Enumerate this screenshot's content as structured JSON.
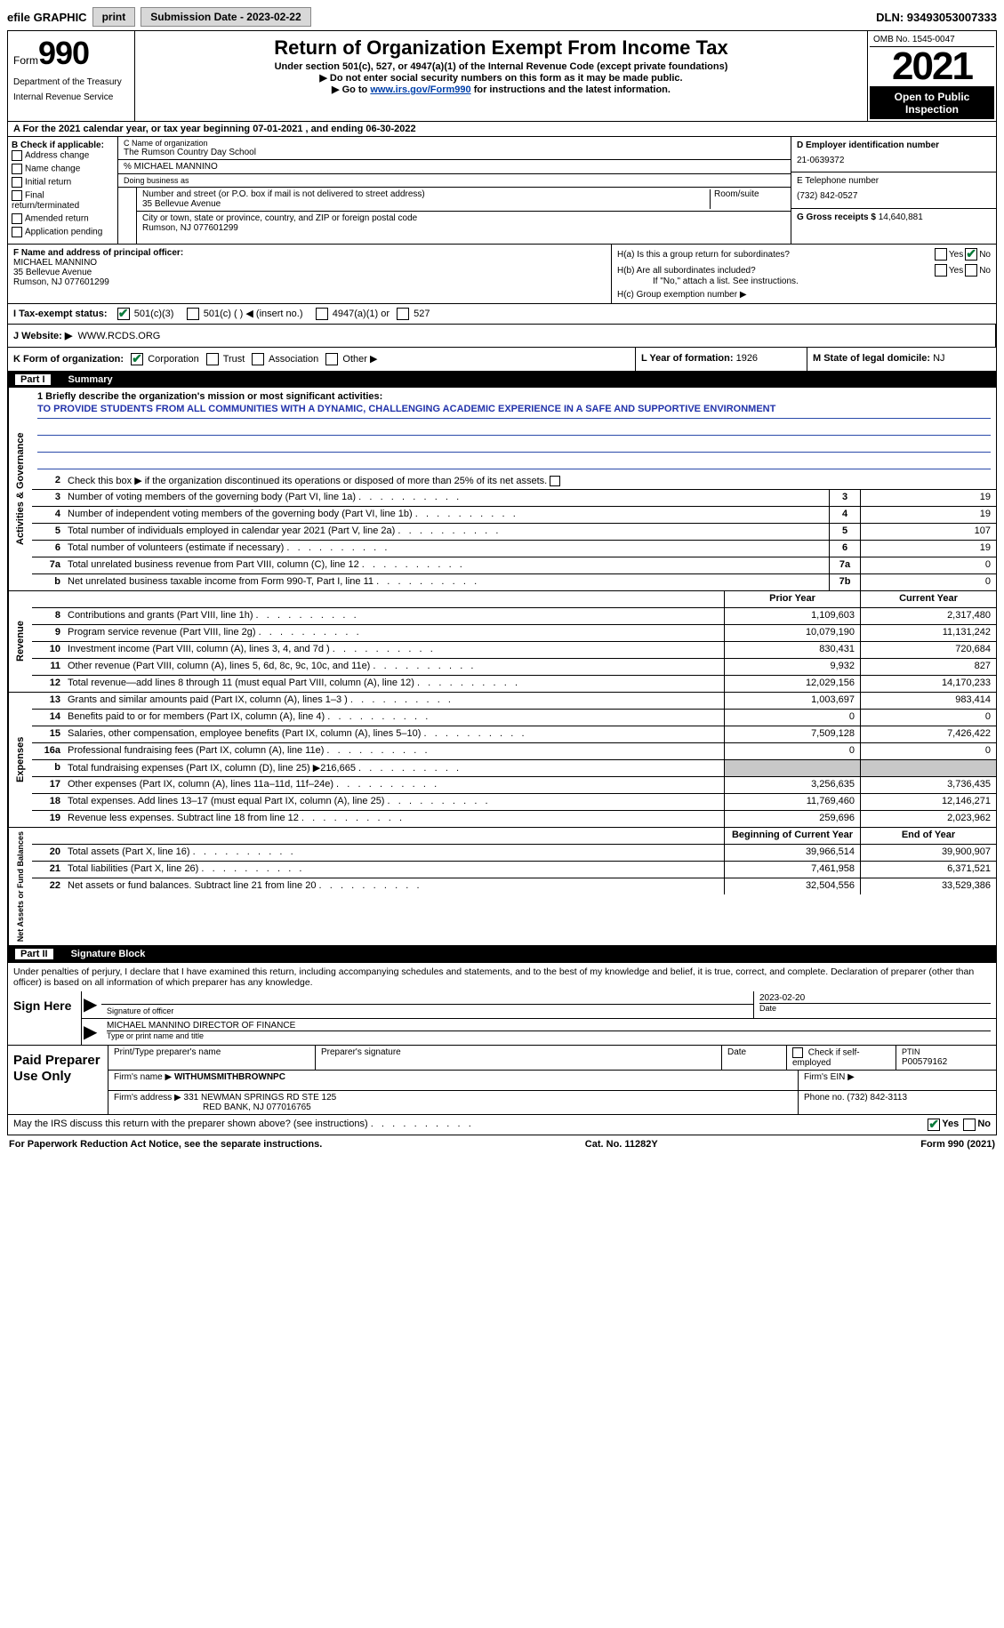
{
  "topbar": {
    "efile_label": "efile GRAPHIC",
    "print_btn": "print",
    "submission_label": "Submission Date - 2023-02-22",
    "dln_label": "DLN: 93493053007333"
  },
  "header": {
    "form_prefix": "Form",
    "form_number": "990",
    "dept": "Department of the Treasury",
    "irs": "Internal Revenue Service",
    "title": "Return of Organization Exempt From Income Tax",
    "sub1": "Under section 501(c), 527, or 4947(a)(1) of the Internal Revenue Code (except private foundations)",
    "sub2": "▶ Do not enter social security numbers on this form as it may be made public.",
    "sub3_pre": "▶ Go to ",
    "sub3_link": "www.irs.gov/Form990",
    "sub3_post": " for instructions and the latest information.",
    "omb": "OMB No. 1545-0047",
    "year": "2021",
    "open": "Open to Public Inspection"
  },
  "row_a": "A For the 2021 calendar year, or tax year beginning 07-01-2021    , and ending 06-30-2022",
  "col_b": {
    "label": "B Check if applicable:",
    "opts": [
      "Address change",
      "Name change",
      "Initial return",
      "Final return/terminated",
      "Amended return",
      "Application pending"
    ]
  },
  "col_c": {
    "name_lab": "C Name of organization",
    "name": "The Rumson Country Day School",
    "care_of": "% MICHAEL MANNINO",
    "dba_lab": "Doing business as",
    "addr_lab": "Number and street (or P.O. box if mail is not delivered to street address)",
    "room_lab": "Room/suite",
    "addr": "35 Bellevue Avenue",
    "city_lab": "City or town, state or province, country, and ZIP or foreign postal code",
    "city": "Rumson, NJ  077601299"
  },
  "col_d": {
    "ein_lab": "D Employer identification number",
    "ein": "21-0639372",
    "phone_lab": "E Telephone number",
    "phone": "(732) 842-0527",
    "gross_lab": "G Gross receipts $",
    "gross": "14,640,881"
  },
  "sec_f": {
    "lab": "F Name and address of principal officer:",
    "name": "MICHAEL MANNINO",
    "addr1": "35 Bellevue Avenue",
    "addr2": "Rumson, NJ  077601299"
  },
  "sec_h": {
    "ha": "H(a)  Is this a group return for subordinates?",
    "hb": "H(b)  Are all subordinates included?",
    "hb_note": "If \"No,\" attach a list. See instructions.",
    "hc": "H(c)  Group exemption number ▶"
  },
  "row_i": {
    "label": "I   Tax-exempt status:",
    "opt1": "501(c)(3)",
    "opt2": "501(c) (   ) ◀ (insert no.)",
    "opt3": "4947(a)(1) or",
    "opt4": "527"
  },
  "row_j": {
    "label": "J   Website: ▶",
    "value": "WWW.RCDS.ORG"
  },
  "row_k": {
    "k1": "K Form of organization:",
    "opts": [
      "Corporation",
      "Trust",
      "Association",
      "Other ▶"
    ],
    "k2_lab": "L Year of formation:",
    "k2_val": "1926",
    "k3_lab": "M State of legal domicile:",
    "k3_val": "NJ"
  },
  "part1": {
    "label": "Part I",
    "title": "Summary"
  },
  "mission": {
    "q": "1  Briefly describe the organization's mission or most significant activities:",
    "text": "TO PROVIDE STUDENTS FROM ALL COMMUNITIES WITH A DYNAMIC, CHALLENGING ACADEMIC EXPERIENCE IN A SAFE AND SUPPORTIVE ENVIRONMENT"
  },
  "activities": {
    "side": "Activities & Governance",
    "r2": "Check this box ▶      if the organization discontinued its operations or disposed of more than 25% of its net assets.",
    "rows": [
      {
        "n": "3",
        "d": "Number of voting members of the governing body (Part VI, line 1a)",
        "b": "3",
        "v": "19"
      },
      {
        "n": "4",
        "d": "Number of independent voting members of the governing body (Part VI, line 1b)",
        "b": "4",
        "v": "19"
      },
      {
        "n": "5",
        "d": "Total number of individuals employed in calendar year 2021 (Part V, line 2a)",
        "b": "5",
        "v": "107"
      },
      {
        "n": "6",
        "d": "Total number of volunteers (estimate if necessary)",
        "b": "6",
        "v": "19"
      },
      {
        "n": "7a",
        "d": "Total unrelated business revenue from Part VIII, column (C), line 12",
        "b": "7a",
        "v": "0"
      },
      {
        "n": "b",
        "d": "Net unrelated business taxable income from Form 990-T, Part I, line 11",
        "b": "7b",
        "v": "0"
      }
    ]
  },
  "revenue": {
    "side": "Revenue",
    "head": {
      "py": "Prior Year",
      "cy": "Current Year"
    },
    "rows": [
      {
        "n": "8",
        "d": "Contributions and grants (Part VIII, line 1h)",
        "py": "1,109,603",
        "cy": "2,317,480"
      },
      {
        "n": "9",
        "d": "Program service revenue (Part VIII, line 2g)",
        "py": "10,079,190",
        "cy": "11,131,242"
      },
      {
        "n": "10",
        "d": "Investment income (Part VIII, column (A), lines 3, 4, and 7d )",
        "py": "830,431",
        "cy": "720,684"
      },
      {
        "n": "11",
        "d": "Other revenue (Part VIII, column (A), lines 5, 6d, 8c, 9c, 10c, and 11e)",
        "py": "9,932",
        "cy": "827"
      },
      {
        "n": "12",
        "d": "Total revenue—add lines 8 through 11 (must equal Part VIII, column (A), line 12)",
        "py": "12,029,156",
        "cy": "14,170,233"
      }
    ]
  },
  "expenses": {
    "side": "Expenses",
    "rows": [
      {
        "n": "13",
        "d": "Grants and similar amounts paid (Part IX, column (A), lines 1–3 )",
        "py": "1,003,697",
        "cy": "983,414"
      },
      {
        "n": "14",
        "d": "Benefits paid to or for members (Part IX, column (A), line 4)",
        "py": "0",
        "cy": "0"
      },
      {
        "n": "15",
        "d": "Salaries, other compensation, employee benefits (Part IX, column (A), lines 5–10)",
        "py": "7,509,128",
        "cy": "7,426,422"
      },
      {
        "n": "16a",
        "d": "Professional fundraising fees (Part IX, column (A), line 11e)",
        "py": "0",
        "cy": "0"
      },
      {
        "n": "b",
        "d": "Total fundraising expenses (Part IX, column (D), line 25) ▶216,665",
        "py": "grey",
        "cy": "grey"
      },
      {
        "n": "17",
        "d": "Other expenses (Part IX, column (A), lines 11a–11d, 11f–24e)",
        "py": "3,256,635",
        "cy": "3,736,435"
      },
      {
        "n": "18",
        "d": "Total expenses. Add lines 13–17 (must equal Part IX, column (A), line 25)",
        "py": "11,769,460",
        "cy": "12,146,271"
      },
      {
        "n": "19",
        "d": "Revenue less expenses. Subtract line 18 from line 12",
        "py": "259,696",
        "cy": "2,023,962"
      }
    ]
  },
  "netassets": {
    "side": "Net Assets or Fund Balances",
    "head": {
      "py": "Beginning of Current Year",
      "cy": "End of Year"
    },
    "rows": [
      {
        "n": "20",
        "d": "Total assets (Part X, line 16)",
        "py": "39,966,514",
        "cy": "39,900,907"
      },
      {
        "n": "21",
        "d": "Total liabilities (Part X, line 26)",
        "py": "7,461,958",
        "cy": "6,371,521"
      },
      {
        "n": "22",
        "d": "Net assets or fund balances. Subtract line 21 from line 20",
        "py": "32,504,556",
        "cy": "33,529,386"
      }
    ]
  },
  "part2": {
    "label": "Part II",
    "title": "Signature Block"
  },
  "penalty": "Under penalties of perjury, I declare that I have examined this return, including accompanying schedules and statements, and to the best of my knowledge and belief, it is true, correct, and complete. Declaration of preparer (other than officer) is based on all information of which preparer has any knowledge.",
  "sign": {
    "left": "Sign Here",
    "sig_lab": "Signature of officer",
    "date_lab": "Date",
    "date": "2023-02-20",
    "name": "MICHAEL MANNINO  DIRECTOR OF FINANCE",
    "name_lab": "Type or print name and title"
  },
  "prep": {
    "left": "Paid Preparer Use Only",
    "h1": "Print/Type preparer's name",
    "h2": "Preparer's signature",
    "h3": "Date",
    "h4": "Check       if self-employed",
    "h5_lab": "PTIN",
    "h5": "P00579162",
    "firm_lab": "Firm's name    ▶",
    "firm": "WITHUMSMITHBROWNPC",
    "ein_lab": "Firm's EIN ▶",
    "addr_lab": "Firm's address ▶",
    "addr1": "331 NEWMAN SPRINGS RD STE 125",
    "addr2": "RED BANK, NJ  077016765",
    "phone_lab": "Phone no.",
    "phone": "(732) 842-3113"
  },
  "footer": {
    "q": "May the IRS discuss this return with the preparer shown above? (see instructions)",
    "paperwork": "For Paperwork Reduction Act Notice, see the separate instructions.",
    "cat": "Cat. No. 11282Y",
    "form": "Form 990 (2021)"
  }
}
